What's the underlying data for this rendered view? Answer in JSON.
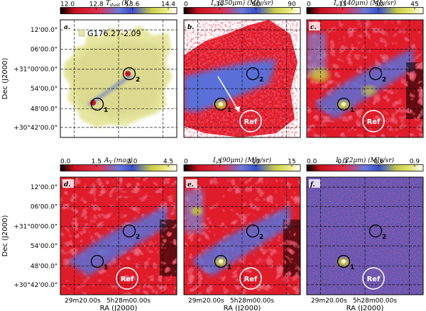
{
  "figure": {
    "ra_axis_label": "RA (J2000)",
    "dec_axis_label": "Dec (J2000)",
    "dec_ticks": [
      "12'00.0\"",
      "06'00.0\"",
      "+31°00'00.0\"",
      "54'00.0\"",
      "48'00.0\"",
      "+30°42'00.0\""
    ],
    "ra_ticks": [
      "29m20.00s",
      "5h28m00.00s"
    ],
    "ref_label": "Ref",
    "source_labels": [
      "1",
      "2"
    ],
    "target_name": "G176.27-2.09"
  },
  "panels": [
    {
      "id": "a",
      "letter": "a.",
      "colorbar_title": "T_dust (K)",
      "title_main": "T",
      "title_sub": "dust",
      "title_unit": "(K)",
      "colorbar_ticks": [
        "12.0",
        "12.8",
        "13.6",
        "14.4"
      ],
      "colormap": "temperature",
      "colors": {
        "low": "#e01a2a",
        "mid": "#5a6fd8",
        "high": "#f0f4c8",
        "peak": "#c8c640"
      },
      "has_ref_circle": false,
      "has_arrow": false,
      "show_target_name": true
    },
    {
      "id": "b",
      "letter": "b.",
      "title_main": "I",
      "title_sub": "ν",
      "title_unit": "(250μm)  (MJy/sr)",
      "colorbar_ticks": [
        "0",
        "30",
        "60",
        "90"
      ],
      "colormap": "intensity",
      "colors": {
        "low": "#e01a2a",
        "mid": "#5a6fd8",
        "high": "#f0f4c8",
        "peak": "#c8c640"
      },
      "has_ref_circle": true,
      "has_arrow": true,
      "show_target_name": false
    },
    {
      "id": "c",
      "letter": "c.",
      "title_main": "I",
      "title_sub": "ν",
      "title_unit": "(140μm)  (MJy/sr)",
      "colorbar_ticks": [
        "0",
        "15",
        "30",
        "45"
      ],
      "colormap": "intensity",
      "colors": {
        "low": "#e01a2a",
        "mid": "#5a6fd8",
        "high": "#f0f4c8",
        "peak": "#c8c640"
      },
      "has_ref_circle": true,
      "has_arrow": false,
      "show_target_name": false
    },
    {
      "id": "d",
      "letter": "d.",
      "title_main": "A",
      "title_sub": "V",
      "title_unit": "(mag)",
      "colorbar_ticks": [
        "0.0",
        "1.5",
        "3.0",
        "4.5"
      ],
      "colormap": "intensity",
      "colors": {
        "low": "#e01a2a",
        "mid": "#5a6fd8",
        "high": "#f0f4c8",
        "peak": "#c8c640"
      },
      "has_ref_circle": true,
      "has_arrow": false,
      "show_target_name": false
    },
    {
      "id": "e",
      "letter": "e.",
      "title_main": "I",
      "title_sub": "ν",
      "title_unit": "(90μm)  (MJy/sr)",
      "colorbar_ticks": [
        "0",
        "5",
        "10",
        "15"
      ],
      "colormap": "intensity",
      "colors": {
        "low": "#e01a2a",
        "mid": "#5a6fd8",
        "high": "#f0f4c8",
        "peak": "#c8c640"
      },
      "has_ref_circle": true,
      "has_arrow": false,
      "show_target_name": false
    },
    {
      "id": "f",
      "letter": "f.",
      "title_main": "I",
      "title_sub": "ν",
      "title_unit": "(22μm)  (MJy/sr)",
      "colorbar_ticks": [
        "0.0",
        "0.3",
        "0.6",
        "0.9"
      ],
      "colormap": "noisy",
      "colors": {
        "low": "#e01a2a",
        "mid": "#5a6fd8",
        "high": "#f0f4c8",
        "peak": "#c8c640"
      },
      "has_ref_circle": true,
      "has_arrow": false,
      "show_target_name": false
    }
  ]
}
